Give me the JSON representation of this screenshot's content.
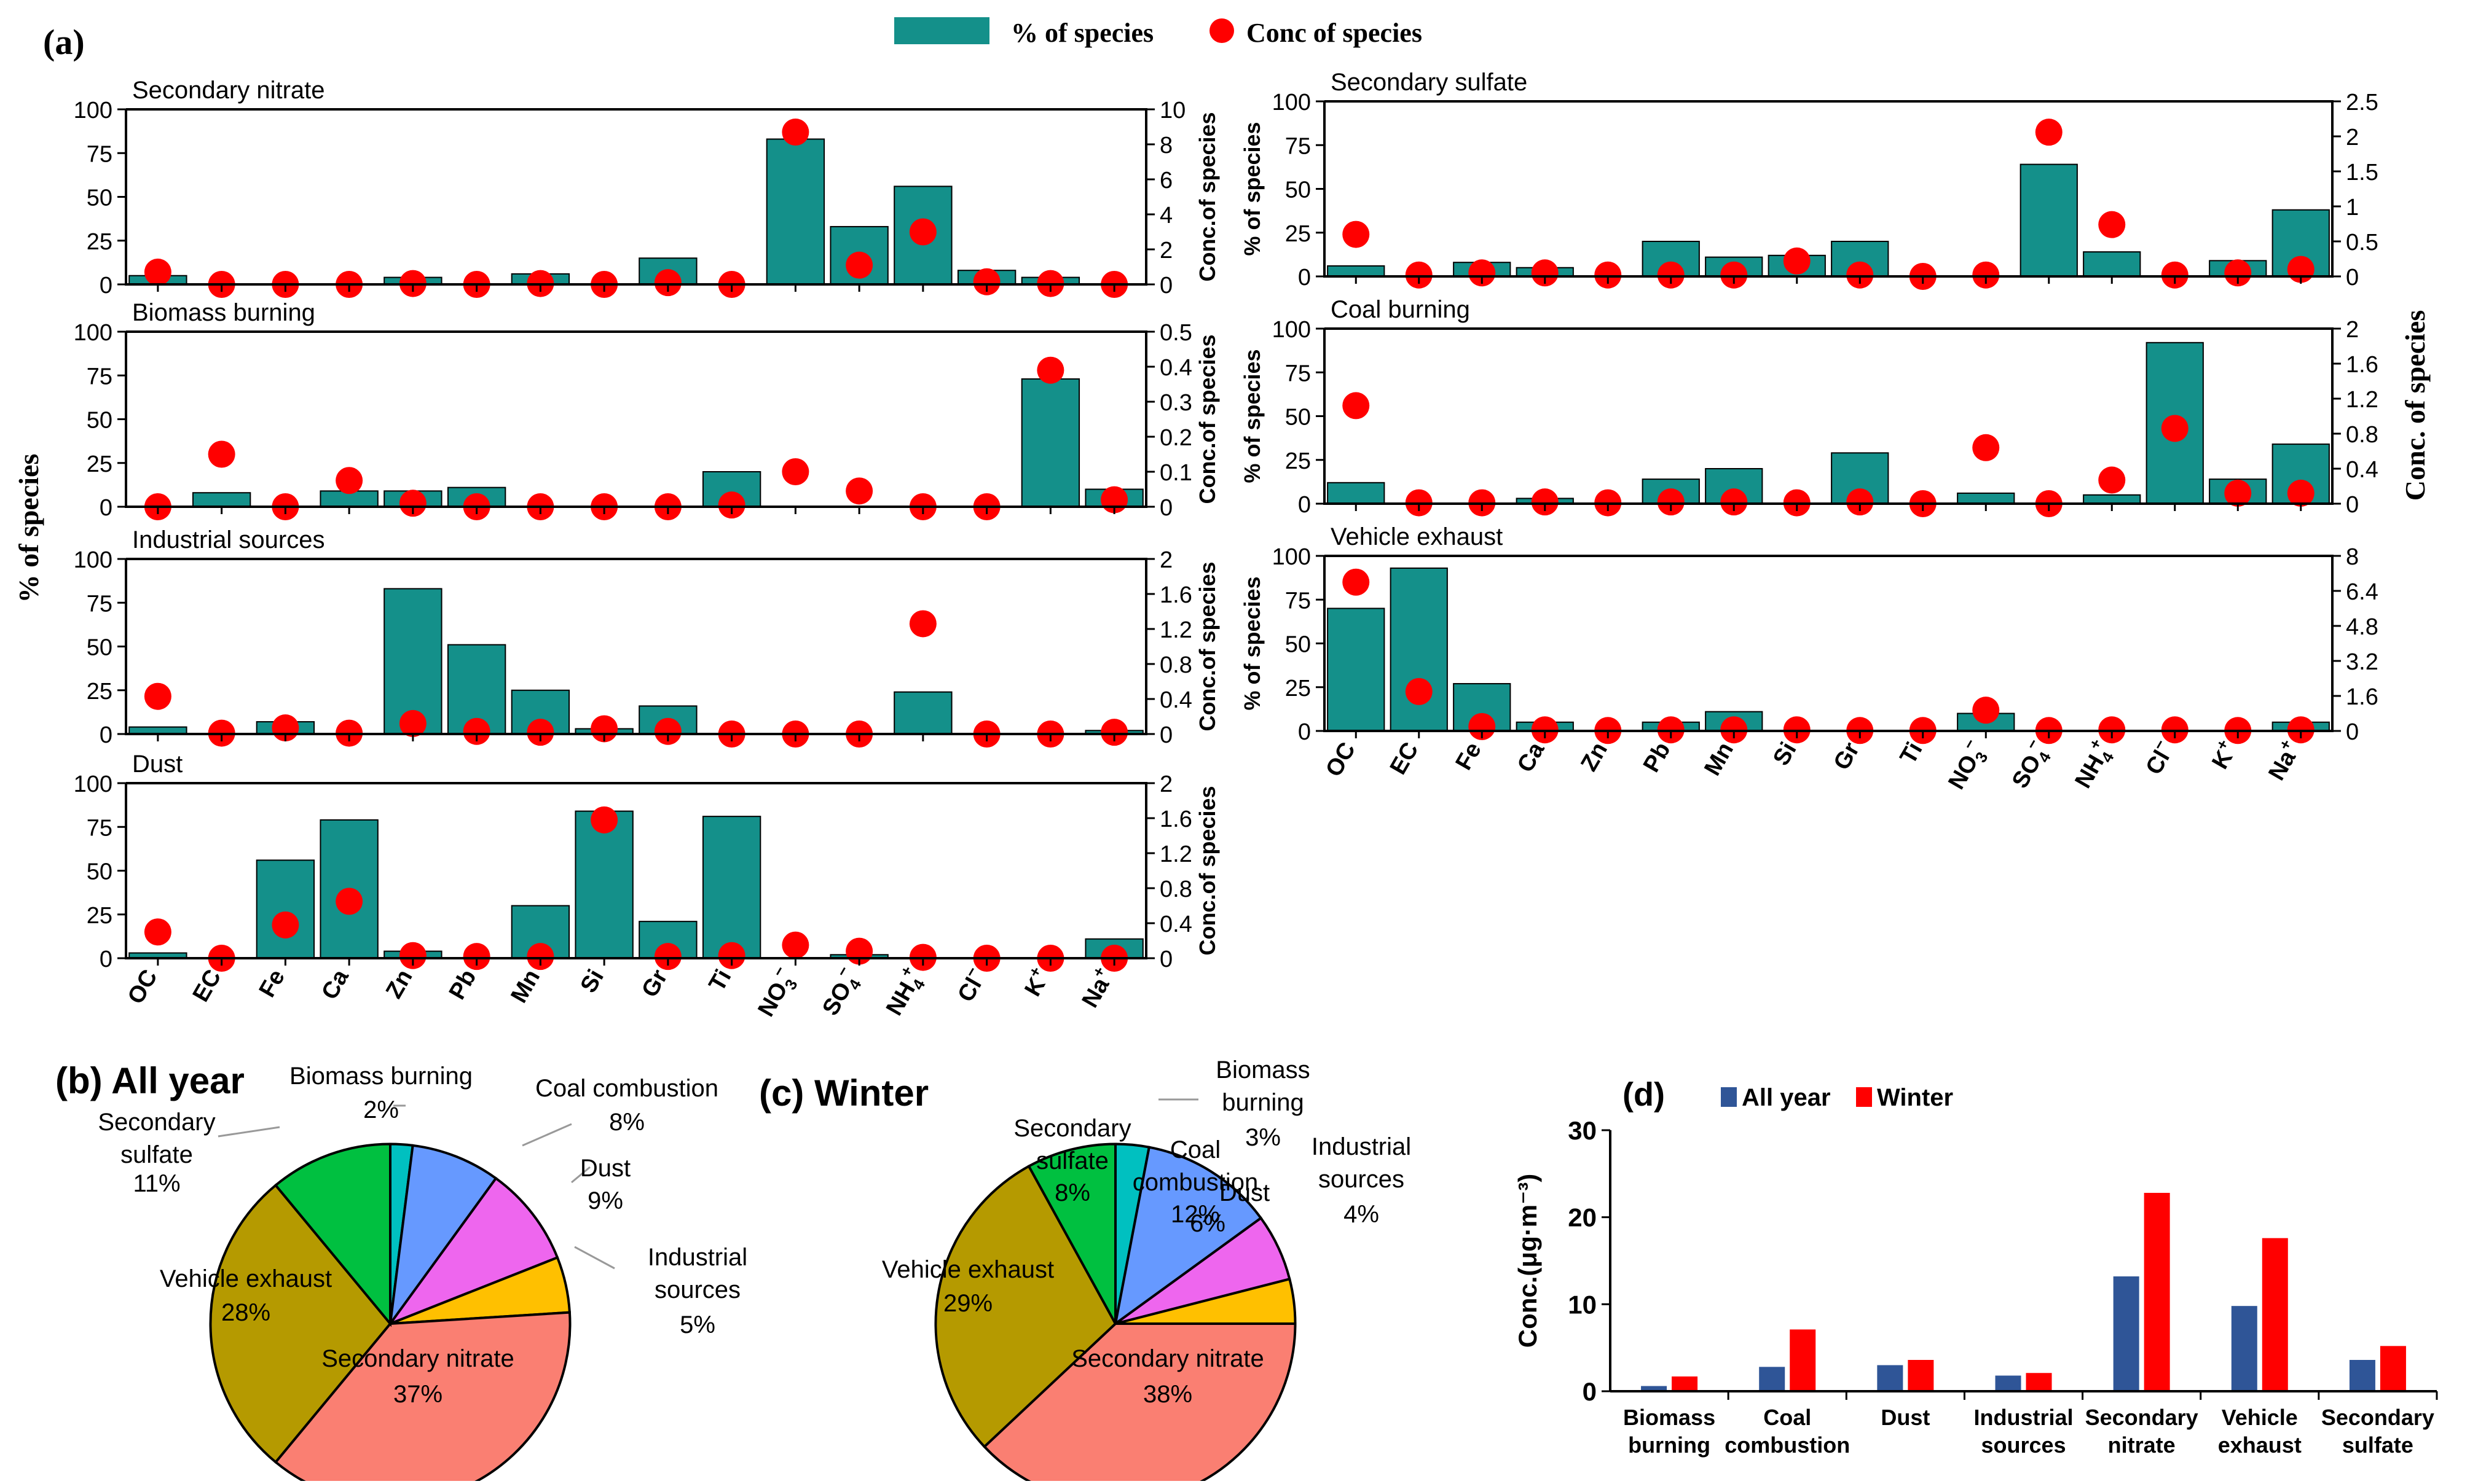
{
  "colors": {
    "bar": "#14908a",
    "dot": "#ff0000",
    "all_year": "#2f5597",
    "winter": "#ff0000"
  },
  "legend": {
    "pct_label": "% of species",
    "conc_label": "Conc of species"
  },
  "panel_a": {
    "label": "(a)",
    "shared_left_ylabel": "% of species",
    "shared_right_ylabel": "Conc. of species",
    "species": [
      {
        "base": "OC",
        "sup": "",
        "sub": ""
      },
      {
        "base": "EC",
        "sup": "",
        "sub": ""
      },
      {
        "base": "Fe",
        "sup": "",
        "sub": ""
      },
      {
        "base": "Ca",
        "sup": "",
        "sub": ""
      },
      {
        "base": "Zn",
        "sup": "",
        "sub": ""
      },
      {
        "base": "Pb",
        "sup": "",
        "sub": ""
      },
      {
        "base": "Mn",
        "sup": "",
        "sub": ""
      },
      {
        "base": "Si",
        "sup": "",
        "sub": ""
      },
      {
        "base": "Gr",
        "sup": "",
        "sub": ""
      },
      {
        "base": "Ti",
        "sup": "",
        "sub": ""
      },
      {
        "base": "NO",
        "sup": "−",
        "sub": "3"
      },
      {
        "base": "SO",
        "sup": "−",
        "sub": "4"
      },
      {
        "base": "NH",
        "sup": "+",
        "sub": "4"
      },
      {
        "base": "Cl",
        "sup": "−",
        "sub": ""
      },
      {
        "base": "K",
        "sup": "+",
        "sub": ""
      },
      {
        "base": "Na",
        "sup": "+",
        "sub": ""
      }
    ]
  },
  "chart_data": [
    {
      "type": "bar",
      "title": "Secondary nitrate",
      "ylabel": "",
      "y2label": "Conc.of species",
      "ylim": [
        0,
        100
      ],
      "y2lim": [
        0,
        10
      ],
      "yticks": [
        "0",
        "25",
        "50",
        "75",
        "100"
      ],
      "y2ticks": [
        "0",
        "2",
        "4",
        "6",
        "8",
        "10"
      ],
      "series": [
        {
          "name": "% of species",
          "values": [
            5,
            0,
            0,
            0,
            4,
            0,
            6,
            0,
            15,
            0,
            83,
            33,
            56,
            8,
            4,
            0
          ]
        },
        {
          "name": "Conc of species",
          "values": [
            0.7,
            0,
            0,
            0,
            0.05,
            0,
            0.05,
            0,
            0.1,
            0,
            8.7,
            1.1,
            3,
            0.15,
            0.05,
            0
          ]
        }
      ]
    },
    {
      "type": "bar",
      "title": "Biomass burning",
      "ylabel": "",
      "y2label": "Conc.of species",
      "ylim": [
        0,
        100
      ],
      "y2lim": [
        0,
        0.5
      ],
      "yticks": [
        "0",
        "25",
        "50",
        "75",
        "100"
      ],
      "y2ticks": [
        "0",
        "0.1",
        "0.2",
        "0.3",
        "0.4",
        "0.5"
      ],
      "series": [
        {
          "name": "% of species",
          "values": [
            0,
            8,
            0,
            9,
            9,
            11,
            0,
            0,
            0,
            20,
            0,
            0,
            0,
            0,
            73,
            10
          ]
        },
        {
          "name": "Conc of species",
          "values": [
            0,
            0.15,
            0,
            0.075,
            0.01,
            0,
            0,
            0,
            0,
            0.005,
            0.1,
            0.045,
            0,
            0,
            0.39,
            0.02
          ]
        }
      ]
    },
    {
      "type": "bar",
      "title": "Industrial sources",
      "ylabel": "",
      "y2label": "Conc.of species",
      "ylim": [
        0,
        100
      ],
      "y2lim": [
        0,
        2
      ],
      "yticks": [
        "0",
        "25",
        "50",
        "75",
        "100"
      ],
      "y2ticks": [
        "0",
        "0.4",
        "0.8",
        "1.2",
        "1.6",
        "2"
      ],
      "series": [
        {
          "name": "% of species",
          "values": [
            4,
            0,
            7,
            0,
            83,
            51,
            25,
            3,
            16,
            0,
            0,
            0,
            24,
            0,
            0,
            2
          ]
        },
        {
          "name": "Conc of species",
          "values": [
            0.43,
            0.01,
            0.07,
            0.01,
            0.12,
            0.03,
            0.02,
            0.06,
            0.03,
            0,
            0,
            0,
            1.26,
            0,
            0,
            0.02
          ]
        }
      ]
    },
    {
      "type": "bar",
      "title": "Dust",
      "ylabel": "",
      "y2label": "Conc.of species",
      "ylim": [
        0,
        100
      ],
      "y2lim": [
        0,
        2
      ],
      "yticks": [
        "0",
        "25",
        "50",
        "75",
        "100"
      ],
      "y2ticks": [
        "0",
        "0.4",
        "0.8",
        "1.2",
        "1.6",
        "2"
      ],
      "series": [
        {
          "name": "% of species",
          "values": [
            3,
            0,
            56,
            79,
            4,
            0,
            30,
            84,
            21,
            81,
            0,
            2,
            0,
            0,
            0,
            11
          ]
        },
        {
          "name": "Conc of species",
          "values": [
            0.3,
            0,
            0.38,
            0.65,
            0.03,
            0.02,
            0.02,
            1.58,
            0.02,
            0.03,
            0.15,
            0.08,
            0.01,
            0,
            0,
            0
          ]
        }
      ]
    },
    {
      "type": "bar",
      "title": "Secondary sulfate",
      "ylabel": "% of species",
      "y2label": "",
      "ylim": [
        0,
        100
      ],
      "y2lim": [
        0,
        2.5
      ],
      "yticks": [
        "0",
        "25",
        "50",
        "75",
        "100"
      ],
      "y2ticks": [
        "0",
        "0.5",
        "1",
        "1.5",
        "2",
        "2.5"
      ],
      "series": [
        {
          "name": "% of species",
          "values": [
            6,
            0,
            8,
            5,
            0,
            20,
            11,
            12,
            20,
            0,
            0,
            64,
            14,
            0,
            9,
            38
          ]
        },
        {
          "name": "Conc of species",
          "values": [
            0.6,
            0.02,
            0.05,
            0.05,
            0.02,
            0.02,
            0.02,
            0.22,
            0.02,
            0,
            0.02,
            2.06,
            0.74,
            0.02,
            0.05,
            0.1
          ]
        }
      ]
    },
    {
      "type": "bar",
      "title": "Coal burning",
      "ylabel": "% of species",
      "y2label": "Conc. of species",
      "ylim": [
        0,
        100
      ],
      "y2lim": [
        0,
        2
      ],
      "yticks": [
        "0",
        "25",
        "50",
        "75",
        "100"
      ],
      "y2ticks": [
        "0",
        "0.4",
        "0.8",
        "1.2",
        "1.6",
        "2"
      ],
      "series": [
        {
          "name": "% of species",
          "values": [
            12,
            0,
            0,
            3,
            0,
            14,
            20,
            0,
            29,
            0,
            6,
            0,
            5,
            92,
            14,
            34
          ]
        },
        {
          "name": "Conc of species",
          "values": [
            1.12,
            0.01,
            0.01,
            0.02,
            0.01,
            0.02,
            0.02,
            0.01,
            0.02,
            0,
            0.64,
            0,
            0.27,
            0.86,
            0.12,
            0.12
          ]
        }
      ]
    },
    {
      "type": "bar",
      "title": "Vehicle exhaust",
      "ylabel": "% of species",
      "y2label": "",
      "ylim": [
        0,
        100
      ],
      "y2lim": [
        0,
        8
      ],
      "yticks": [
        "0",
        "25",
        "50",
        "75",
        "100"
      ],
      "y2ticks": [
        "0",
        "1.6",
        "3.2",
        "4.8",
        "6.4",
        "8"
      ],
      "series": [
        {
          "name": "% of species",
          "values": [
            70,
            93,
            27,
            5,
            0,
            5,
            11,
            0,
            0,
            0,
            10,
            0,
            0,
            0,
            0,
            5
          ]
        },
        {
          "name": "Conc of species",
          "values": [
            6.8,
            1.8,
            0.2,
            0.05,
            0.02,
            0.05,
            0.05,
            0.05,
            0.02,
            0.02,
            0.95,
            0.02,
            0.05,
            0.05,
            0.02,
            0.05
          ]
        }
      ]
    },
    {
      "type": "pie",
      "title": "All year",
      "label": "(b)",
      "slices": [
        {
          "name": "Biomass burning",
          "line1": "Biomass burning",
          "line2": "",
          "pct_text": "2%",
          "value": 2,
          "color": "#00c0c0"
        },
        {
          "name": "Coal combustion",
          "line1": "Coal combustion",
          "line2": "",
          "pct_text": "8%",
          "value": 8,
          "color": "#6699ff"
        },
        {
          "name": "Dust",
          "line1": "Dust",
          "line2": "",
          "pct_text": "9%",
          "value": 9,
          "color": "#ee66ee"
        },
        {
          "name": "Industrial sources",
          "line1": "Industrial",
          "line2": "sources",
          "pct_text": "5%",
          "value": 5,
          "color": "#ffc000"
        },
        {
          "name": "Secondary nitrate",
          "line1": "Secondary nitrate",
          "line2": "",
          "pct_text": "37%",
          "value": 37,
          "color": "#fa7f72"
        },
        {
          "name": "Vehicle exhaust",
          "line1": "Vehicle exhaust",
          "line2": "",
          "pct_text": "28%",
          "value": 28,
          "color": "#b59a00"
        },
        {
          "name": "Secondary sulfate",
          "line1": "Secondary",
          "line2": "sulfate",
          "pct_text": "11%",
          "value": 11,
          "color": "#00c040"
        }
      ]
    },
    {
      "type": "pie",
      "title": "Winter",
      "label": "(c)",
      "slices": [
        {
          "name": "Biomass burning",
          "line1": "Biomass",
          "line2": "burning",
          "pct_text": "3%",
          "value": 3,
          "color": "#00c0c0"
        },
        {
          "name": "Coal combustion",
          "line1": "Coal",
          "line2": "combustion",
          "pct_text": "12%",
          "value": 12,
          "color": "#6699ff"
        },
        {
          "name": "Dust",
          "line1": "Dust",
          "line2": "",
          "pct_text": "6%",
          "value": 6,
          "color": "#ee66ee"
        },
        {
          "name": "Industrial sources",
          "line1": "Industrial",
          "line2": "sources",
          "pct_text": "4%",
          "value": 4,
          "color": "#ffc000"
        },
        {
          "name": "Secondary nitrate",
          "line1": "Secondary nitrate",
          "line2": "",
          "pct_text": "38%",
          "value": 38,
          "color": "#fa7f72"
        },
        {
          "name": "Vehicle exhaust",
          "line1": "Vehicle exhaust",
          "line2": "",
          "pct_text": "29%",
          "value": 29,
          "color": "#b59a00"
        },
        {
          "name": "Secondary sulfate",
          "line1": "Secondary",
          "line2": "sulfate",
          "pct_text": "8%",
          "value": 8,
          "color": "#00c040"
        }
      ]
    },
    {
      "type": "bar",
      "title": "",
      "label": "(d)",
      "ylabel": "Conc.(μg·m⁻³)",
      "ylim": [
        0,
        30
      ],
      "yticks": [
        "0",
        "10",
        "20",
        "30"
      ],
      "categories": [
        {
          "line1": "Biomass",
          "line2": "burning"
        },
        {
          "line1": "Coal",
          "line2": "combustion"
        },
        {
          "line1": "Dust",
          "line2": ""
        },
        {
          "line1": "Industrial",
          "line2": "sources"
        },
        {
          "line1": "Secondary",
          "line2": "nitrate"
        },
        {
          "line1": "Vehicle",
          "line2": "exhaust"
        },
        {
          "line1": "Secondary",
          "line2": "sulfate"
        }
      ],
      "series": [
        {
          "name": "All year",
          "values": [
            0.6,
            2.8,
            3.0,
            1.8,
            13.2,
            9.8,
            3.6
          ]
        },
        {
          "name": "Winter",
          "values": [
            1.7,
            7.1,
            3.6,
            2.1,
            22.8,
            17.6,
            5.2
          ]
        }
      ]
    }
  ]
}
